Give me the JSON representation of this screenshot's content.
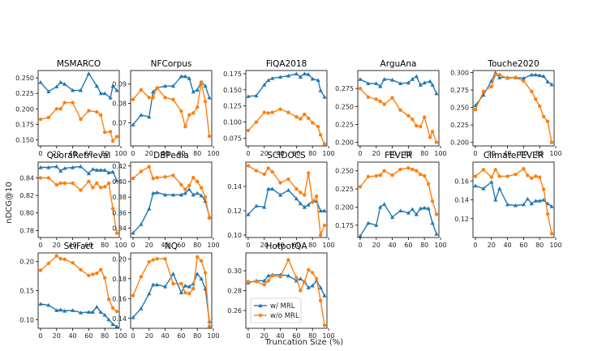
{
  "chart_data": [
    {
      "type": "line",
      "title": "MSMARCO",
      "ylim": [
        0.14,
        0.262
      ],
      "yticks": [
        0.15,
        0.175,
        0.2,
        0.225,
        0.25
      ],
      "yformat": 3,
      "series": [
        {
          "name": "w/ MRL",
          "x": [
            0,
            10,
            20,
            25,
            30,
            40,
            50,
            60,
            70,
            75,
            80,
            87,
            90,
            95
          ],
          "y": [
            0.243,
            0.228,
            0.236,
            0.243,
            0.24,
            0.23,
            0.23,
            0.257,
            0.237,
            0.225,
            0.225,
            0.218,
            0.237,
            0.23
          ]
        },
        {
          "name": "w/o MRL",
          "x": [
            0,
            10,
            20,
            25,
            30,
            40,
            50,
            60,
            70,
            75,
            80,
            87,
            90,
            95
          ],
          "y": [
            0.183,
            0.186,
            0.2,
            0.2,
            0.21,
            0.21,
            0.183,
            0.197,
            0.195,
            0.19,
            0.162,
            0.163,
            0.148,
            0.155
          ]
        }
      ]
    },
    {
      "type": "line",
      "title": "NFCorpus",
      "ylim": [
        0.058,
        0.097
      ],
      "yticks": [
        0.07,
        0.08,
        0.09
      ],
      "yformat": 2,
      "series": [
        {
          "name": "w/ MRL",
          "x": [
            0,
            10,
            20,
            25,
            30,
            40,
            50,
            60,
            65,
            70,
            75,
            80,
            85,
            90,
            95
          ],
          "y": [
            0.069,
            0.074,
            0.073,
            0.086,
            0.088,
            0.089,
            0.089,
            0.094,
            0.094,
            0.093,
            0.086,
            0.087,
            0.091,
            0.089,
            0.083
          ]
        },
        {
          "name": "w/o MRL",
          "x": [
            0,
            10,
            20,
            25,
            30,
            40,
            50,
            60,
            65,
            70,
            75,
            80,
            85,
            90,
            95
          ],
          "y": [
            0.082,
            0.087,
            0.083,
            0.083,
            0.088,
            0.083,
            0.082,
            0.076,
            0.068,
            0.074,
            0.075,
            0.078,
            0.091,
            0.081,
            0.063
          ]
        }
      ]
    },
    {
      "type": "line",
      "title": "FiQA2018",
      "ylim": [
        0.063,
        0.18
      ],
      "yticks": [
        0.075,
        0.1,
        0.125,
        0.15,
        0.175
      ],
      "yformat": 3,
      "series": [
        {
          "name": "w/ MRL",
          "x": [
            0,
            10,
            20,
            25,
            30,
            40,
            50,
            60,
            65,
            70,
            75,
            80,
            87,
            90,
            95
          ],
          "y": [
            0.14,
            0.141,
            0.158,
            0.165,
            0.168,
            0.17,
            0.172,
            0.175,
            0.17,
            0.175,
            0.174,
            0.167,
            0.165,
            0.149,
            0.139
          ]
        },
        {
          "name": "w/o MRL",
          "x": [
            0,
            10,
            20,
            25,
            30,
            40,
            50,
            60,
            65,
            70,
            75,
            80,
            87,
            90,
            95
          ],
          "y": [
            0.087,
            0.1,
            0.115,
            0.114,
            0.115,
            0.12,
            0.115,
            0.108,
            0.105,
            0.112,
            0.106,
            0.099,
            0.093,
            0.08,
            0.066
          ]
        }
      ]
    },
    {
      "type": "line",
      "title": "ArguAna",
      "ylim": [
        0.195,
        0.3
      ],
      "yticks": [
        0.2,
        0.225,
        0.25,
        0.275
      ],
      "yformat": 3,
      "series": [
        {
          "name": "w/ MRL",
          "x": [
            0,
            10,
            20,
            25,
            30,
            40,
            50,
            60,
            65,
            70,
            75,
            80,
            87,
            90,
            95
          ],
          "y": [
            0.288,
            0.282,
            0.282,
            0.278,
            0.288,
            0.287,
            0.282,
            0.283,
            0.288,
            0.292,
            0.28,
            0.283,
            0.285,
            0.28,
            0.268
          ]
        },
        {
          "name": "w/o MRL",
          "x": [
            0,
            10,
            20,
            25,
            30,
            40,
            50,
            60,
            65,
            70,
            75,
            80,
            87,
            90,
            95
          ],
          "y": [
            0.275,
            0.263,
            0.26,
            0.257,
            0.253,
            0.262,
            0.245,
            0.237,
            0.232,
            0.223,
            0.222,
            0.235,
            0.207,
            0.215,
            0.2
          ]
        }
      ]
    },
    {
      "type": "line",
      "title": "Touche2020",
      "ylim": [
        0.195,
        0.303
      ],
      "yticks": [
        0.2,
        0.225,
        0.25,
        0.275,
        0.3
      ],
      "yformat": 3,
      "series": [
        {
          "name": "w/ MRL",
          "x": [
            0,
            10,
            20,
            25,
            30,
            40,
            50,
            60,
            70,
            75,
            80,
            85,
            90,
            95
          ],
          "y": [
            0.253,
            0.268,
            0.288,
            0.3,
            0.293,
            0.293,
            0.293,
            0.292,
            0.297,
            0.297,
            0.296,
            0.295,
            0.287,
            0.283
          ]
        },
        {
          "name": "w/o MRL",
          "x": [
            0,
            10,
            20,
            25,
            30,
            40,
            50,
            60,
            70,
            75,
            80,
            85,
            90,
            95
          ],
          "y": [
            0.247,
            0.273,
            0.28,
            0.297,
            0.297,
            0.292,
            0.293,
            0.288,
            0.273,
            0.262,
            0.252,
            0.237,
            0.23,
            0.2
          ]
        }
      ]
    },
    {
      "type": "line",
      "title": "QuoraRetrieval",
      "ylim": [
        0.772,
        0.858
      ],
      "yticks": [
        0.78,
        0.8,
        0.82,
        0.84
      ],
      "yformat": 2,
      "series": [
        {
          "name": "w/ MRL",
          "x": [
            0,
            10,
            20,
            25,
            30,
            40,
            50,
            60,
            65,
            70,
            75,
            80,
            85,
            90,
            95
          ],
          "y": [
            0.852,
            0.852,
            0.853,
            0.848,
            0.851,
            0.852,
            0.853,
            0.845,
            0.85,
            0.849,
            0.849,
            0.849,
            0.846,
            0.847,
            0.837
          ]
        },
        {
          "name": "w/o MRL",
          "x": [
            0,
            10,
            20,
            25,
            30,
            40,
            50,
            60,
            65,
            70,
            75,
            80,
            85,
            90,
            95
          ],
          "y": [
            0.84,
            0.84,
            0.832,
            0.834,
            0.834,
            0.834,
            0.826,
            0.836,
            0.829,
            0.834,
            0.829,
            0.83,
            0.834,
            0.805,
            0.777
          ]
        }
      ]
    },
    {
      "type": "line",
      "title": "DBPedia",
      "ylim": [
        0.328,
        0.425
      ],
      "yticks": [
        0.34,
        0.36,
        0.38,
        0.4,
        0.42
      ],
      "yformat": 2,
      "series": [
        {
          "name": "w/ MRL",
          "x": [
            0,
            10,
            20,
            25,
            30,
            40,
            50,
            60,
            65,
            70,
            75,
            80,
            85,
            90,
            95
          ],
          "y": [
            0.334,
            0.345,
            0.365,
            0.385,
            0.386,
            0.383,
            0.383,
            0.383,
            0.385,
            0.39,
            0.383,
            0.385,
            0.382,
            0.375,
            0.355
          ]
        },
        {
          "name": "w/o MRL",
          "x": [
            0,
            10,
            20,
            25,
            30,
            40,
            50,
            60,
            65,
            70,
            75,
            80,
            85,
            90,
            95
          ],
          "y": [
            0.404,
            0.413,
            0.419,
            0.404,
            0.405,
            0.406,
            0.408,
            0.396,
            0.39,
            0.395,
            0.405,
            0.4,
            0.392,
            0.38,
            0.353
          ]
        }
      ]
    },
    {
      "type": "line",
      "title": "SCIDOCS",
      "ylim": [
        0.098,
        0.16
      ],
      "yticks": [
        0.1,
        0.12,
        0.14
      ],
      "yformat": 2,
      "series": [
        {
          "name": "w/ MRL",
          "x": [
            0,
            10,
            20,
            25,
            30,
            40,
            50,
            60,
            65,
            70,
            75,
            80,
            85,
            90,
            95
          ],
          "y": [
            0.117,
            0.124,
            0.123,
            0.138,
            0.138,
            0.133,
            0.137,
            0.13,
            0.126,
            0.123,
            0.125,
            0.128,
            0.128,
            0.12,
            0.12
          ]
        },
        {
          "name": "w/o MRL",
          "x": [
            0,
            10,
            20,
            25,
            30,
            40,
            50,
            60,
            65,
            70,
            75,
            80,
            85,
            90,
            95
          ],
          "y": [
            0.157,
            0.153,
            0.15,
            0.155,
            0.152,
            0.143,
            0.146,
            0.138,
            0.135,
            0.133,
            0.151,
            0.127,
            0.132,
            0.1,
            0.108
          ]
        }
      ]
    },
    {
      "type": "line",
      "title": "FEVER",
      "ylim": [
        0.158,
        0.262
      ],
      "yticks": [
        0.175,
        0.2,
        0.225,
        0.25
      ],
      "yformat": 3,
      "series": [
        {
          "name": "w/ MRL",
          "x": [
            0,
            10,
            20,
            25,
            30,
            40,
            50,
            60,
            65,
            70,
            75,
            80,
            85,
            90,
            95
          ],
          "y": [
            0.16,
            0.178,
            0.175,
            0.2,
            0.204,
            0.186,
            0.195,
            0.192,
            0.197,
            0.19,
            0.198,
            0.199,
            0.198,
            0.178,
            0.163
          ]
        },
        {
          "name": "w/o MRL",
          "x": [
            0,
            10,
            20,
            25,
            30,
            40,
            50,
            60,
            65,
            70,
            75,
            80,
            85,
            90,
            95
          ],
          "y": [
            0.228,
            0.242,
            0.243,
            0.244,
            0.25,
            0.244,
            0.252,
            0.254,
            0.252,
            0.25,
            0.245,
            0.243,
            0.232,
            0.208,
            0.19
          ]
        }
      ]
    },
    {
      "type": "line",
      "title": "ClimateFEVER",
      "ylim": [
        0.1,
        0.18
      ],
      "yticks": [
        0.12,
        0.14,
        0.16
      ],
      "yformat": 2,
      "series": [
        {
          "name": "w/ MRL",
          "x": [
            0,
            10,
            20,
            25,
            30,
            40,
            50,
            60,
            65,
            70,
            75,
            80,
            85,
            90,
            95
          ],
          "y": [
            0.155,
            0.152,
            0.159,
            0.14,
            0.152,
            0.135,
            0.134,
            0.135,
            0.141,
            0.136,
            0.139,
            0.139,
            0.14,
            0.136,
            0.133
          ]
        },
        {
          "name": "w/o MRL",
          "x": [
            0,
            10,
            20,
            25,
            30,
            40,
            50,
            60,
            65,
            70,
            75,
            80,
            85,
            90,
            95
          ],
          "y": [
            0.165,
            0.172,
            0.164,
            0.172,
            0.165,
            0.165,
            0.167,
            0.173,
            0.166,
            0.163,
            0.165,
            0.164,
            0.151,
            0.125,
            0.104
          ]
        }
      ]
    },
    {
      "type": "line",
      "title": "SciFact",
      "ylim": [
        0.085,
        0.215
      ],
      "yticks": [
        0.1,
        0.15,
        0.2
      ],
      "yformat": 2,
      "series": [
        {
          "name": "w/ MRL",
          "x": [
            0,
            10,
            20,
            25,
            30,
            40,
            50,
            60,
            65,
            70,
            75,
            80,
            85,
            90,
            95
          ],
          "y": [
            0.127,
            0.125,
            0.116,
            0.117,
            0.115,
            0.116,
            0.112,
            0.113,
            0.113,
            0.122,
            0.113,
            0.108,
            0.1,
            0.092,
            0.088
          ]
        },
        {
          "name": "w/o MRL",
          "x": [
            0,
            10,
            20,
            25,
            30,
            40,
            50,
            60,
            65,
            70,
            75,
            80,
            85,
            90,
            95
          ],
          "y": [
            0.185,
            0.197,
            0.21,
            0.205,
            0.204,
            0.198,
            0.186,
            0.176,
            0.178,
            0.18,
            0.186,
            0.172,
            0.135,
            0.12,
            0.114
          ]
        }
      ]
    },
    {
      "type": "line",
      "title": "NQ",
      "ylim": [
        0.13,
        0.206
      ],
      "yticks": [
        0.14,
        0.16,
        0.18,
        0.2
      ],
      "yformat": 2,
      "series": [
        {
          "name": "w/ MRL",
          "x": [
            0,
            10,
            20,
            25,
            30,
            40,
            50,
            60,
            65,
            70,
            75,
            80,
            85,
            90,
            95
          ],
          "y": [
            0.141,
            0.15,
            0.165,
            0.174,
            0.174,
            0.172,
            0.185,
            0.166,
            0.173,
            0.172,
            0.175,
            0.185,
            0.18,
            0.17,
            0.137
          ]
        },
        {
          "name": "w/o MRL",
          "x": [
            0,
            10,
            20,
            25,
            30,
            40,
            50,
            60,
            65,
            70,
            75,
            80,
            85,
            90,
            95
          ],
          "y": [
            0.163,
            0.182,
            0.197,
            0.199,
            0.2,
            0.2,
            0.175,
            0.175,
            0.166,
            0.165,
            0.17,
            0.202,
            0.198,
            0.186,
            0.132
          ]
        }
      ]
    },
    {
      "type": "line",
      "title": "HotpotQA",
      "ylim": [
        0.242,
        0.318
      ],
      "yticks": [
        0.26,
        0.28,
        0.3
      ],
      "yformat": 2,
      "series": [
        {
          "name": "w/ MRL",
          "x": [
            0,
            10,
            20,
            25,
            30,
            40,
            50,
            60,
            65,
            70,
            75,
            80,
            85,
            90,
            95
          ],
          "y": [
            0.288,
            0.29,
            0.29,
            0.295,
            0.296,
            0.296,
            0.295,
            0.29,
            0.292,
            0.289,
            0.283,
            0.285,
            0.29,
            0.283,
            0.275
          ]
        },
        {
          "name": "w/o MRL",
          "x": [
            0,
            10,
            20,
            25,
            30,
            40,
            50,
            60,
            65,
            70,
            75,
            80,
            85,
            90,
            95
          ],
          "y": [
            0.289,
            0.289,
            0.286,
            0.29,
            0.295,
            0.294,
            0.311,
            0.293,
            0.28,
            0.289,
            0.301,
            0.298,
            0.292,
            0.27,
            0.245
          ]
        }
      ]
    }
  ],
  "shared": {
    "ylabel": "nDCG@10",
    "xlabel": "Truncation Size (%)",
    "xlim": [
      -3,
      98
    ],
    "xticks": [
      "0",
      "20",
      "40",
      "60",
      "80",
      "100"
    ],
    "legend_placement": "lower-left of HotpotQA panel",
    "legend": [
      {
        "name": "w/ MRL",
        "color": "#1f77b4",
        "marker": "triangle"
      },
      {
        "name": "w/o MRL",
        "color": "#ff7f0e",
        "marker": "circle"
      }
    ]
  }
}
